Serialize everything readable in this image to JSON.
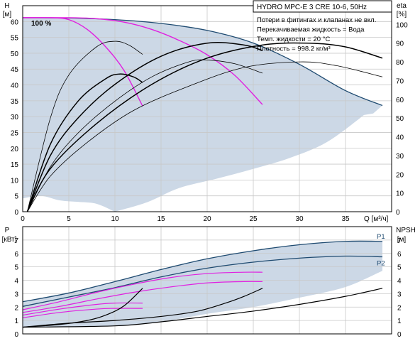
{
  "title": "HYDRO MPC-E 3 CRE 10-6, 50Hz",
  "info_lines": [
    "Потери в фитингах и клапанах не вкл.",
    "Перекачиваемая жидкость = Вода",
    "Темп. жидкости = 20 °C",
    "Плотность = 998.2 кг/м³"
  ],
  "colors": {
    "envelope_fill": "#ccd8e6",
    "envelope_edge": "#1e4a70",
    "speed_curves": "#e020e0",
    "efficiency_curves": "#000000",
    "grid": "#c8c8c8"
  },
  "chart_data": [
    {
      "type": "line",
      "name": "head-efficiency",
      "title": "HYDRO MPC-E 3 CRE 10-6, 50Hz",
      "xlabel": "Q [м³/ч]",
      "ylabel": "H [м]",
      "y2label": "eta [%]",
      "xlim": [
        0,
        40
      ],
      "ylim": [
        0,
        65
      ],
      "y2lim": [
        0,
        110
      ],
      "xticks": [
        0,
        5,
        10,
        15,
        20,
        25,
        30,
        35
      ],
      "yticks": [
        0,
        5,
        10,
        15,
        20,
        25,
        30,
        35,
        40,
        45,
        50,
        55,
        60
      ],
      "y2ticks": [
        0,
        10,
        20,
        30,
        40,
        50,
        60,
        70,
        80,
        90,
        100
      ],
      "annotation": "100 %",
      "envelope": {
        "upper": [
          [
            0,
            61.2
          ],
          [
            5,
            61.1
          ],
          [
            10,
            60.6
          ],
          [
            15,
            59.4
          ],
          [
            20,
            57.2
          ],
          [
            25,
            53.2
          ],
          [
            30,
            46.5
          ],
          [
            35,
            38.2
          ],
          [
            39,
            33.5
          ]
        ],
        "right": [
          [
            39,
            33.5
          ],
          [
            38,
            31
          ],
          [
            37,
            30.5
          ]
        ],
        "lower": [
          [
            0,
            4.2
          ],
          [
            2,
            5
          ],
          [
            4,
            3.6
          ],
          [
            6,
            3.1
          ],
          [
            8,
            2.5
          ],
          [
            10,
            0
          ]
        ],
        "lower_right": [
          [
            10,
            0
          ],
          [
            13.5,
            3
          ],
          [
            17,
            7.5
          ],
          [
            21,
            10.4
          ],
          [
            25,
            13.5
          ],
          [
            29,
            17
          ],
          [
            33,
            22
          ],
          [
            37,
            30.5
          ]
        ]
      },
      "series": [
        {
          "role": "head",
          "points": [
            [
              0,
              61.2
            ],
            [
              3,
              61.2
            ],
            [
              5,
              60.6
            ],
            [
              7,
              57.5
            ],
            [
              9,
              52
            ],
            [
              11,
              44.5
            ],
            [
              13,
              33.3
            ]
          ]
        },
        {
          "role": "head",
          "points": [
            [
              0,
              61.2
            ],
            [
              5,
              61.2
            ],
            [
              8,
              60.9
            ],
            [
              11,
              59.8
            ],
            [
              14,
              57.5
            ],
            [
              17,
              54
            ],
            [
              20,
              49.5
            ],
            [
              23,
              43
            ],
            [
              26,
              33.8
            ]
          ]
        },
        {
          "role": "efficiency_1pump",
          "points": [
            [
              0.5,
              0
            ],
            [
              3,
              50
            ],
            [
              5,
              73
            ],
            [
              8,
              88
            ],
            [
              10,
              91
            ],
            [
              11.5,
              89
            ],
            [
              13,
              84
            ]
          ]
        },
        {
          "role": "efficiency_1pump",
          "points": [
            [
              0.5,
              0
            ],
            [
              3,
              36
            ],
            [
              6,
              59
            ],
            [
              9,
              71
            ],
            [
              10.5,
              73.5
            ],
            [
              12,
              72
            ],
            [
              13,
              69
            ]
          ]
        },
        {
          "role": "efficiency_2pumps",
          "points": [
            [
              0.5,
              0
            ],
            [
              3,
              24
            ],
            [
              6,
              42
            ],
            [
              10,
              59
            ],
            [
              14,
              72
            ],
            [
              18,
              80
            ],
            [
              20,
              81
            ],
            [
              23,
              79
            ],
            [
              26,
              74
            ]
          ]
        },
        {
          "role": "efficiency_2pumps",
          "points": [
            [
              0.5,
              0
            ],
            [
              3,
              30
            ],
            [
              6,
              50
            ],
            [
              10,
              68
            ],
            [
              15,
              83
            ],
            [
              20,
              90
            ],
            [
              24,
              89
            ],
            [
              26,
              86
            ]
          ]
        },
        {
          "role": "efficiency_3pumps",
          "points": [
            [
              0.5,
              0
            ],
            [
              3,
              19
            ],
            [
              7,
              37
            ],
            [
              12,
              54
            ],
            [
              18,
              67
            ],
            [
              24,
              77
            ],
            [
              30,
              80
            ],
            [
              34,
              78
            ],
            [
              39,
              72
            ]
          ]
        },
        {
          "role": "efficiency_3pumps",
          "points": [
            [
              0.5,
              0
            ],
            [
              3,
              23
            ],
            [
              8,
              47
            ],
            [
              14,
              68
            ],
            [
              20,
              82
            ],
            [
              26,
              89
            ],
            [
              31,
              90
            ],
            [
              35,
              88
            ],
            [
              39,
              82
            ]
          ]
        }
      ]
    },
    {
      "type": "line",
      "name": "power-npsh",
      "xlabel": "Q [м³/ч]",
      "ylabel": "P [кВт]",
      "y2label": "NPSH [м]",
      "xlim": [
        0,
        40
      ],
      "ylim": [
        0,
        8
      ],
      "y2lim": [
        0,
        8
      ],
      "yticks": [
        0,
        1,
        2,
        3,
        4,
        5,
        6,
        7
      ],
      "y2ticks": [
        0,
        1,
        2,
        3,
        4,
        5,
        6,
        7
      ],
      "envelope": {
        "upper": [
          [
            0,
            2.4
          ],
          [
            5,
            3.05
          ],
          [
            10,
            3.9
          ],
          [
            15,
            4.8
          ],
          [
            20,
            5.6
          ],
          [
            25,
            6.2
          ],
          [
            30,
            6.65
          ],
          [
            35,
            6.9
          ],
          [
            39,
            6.9
          ]
        ],
        "lower": [
          [
            0,
            0.5
          ],
          [
            10,
            0.6
          ],
          [
            15,
            0.9
          ],
          [
            20,
            1.5
          ],
          [
            25,
            2
          ],
          [
            30,
            2.7
          ],
          [
            35,
            3.5
          ],
          [
            39,
            4.7
          ]
        ]
      },
      "series": [
        {
          "name": "P1",
          "role": "power",
          "points": [
            [
              0,
              2.4
            ],
            [
              5,
              3.05
            ],
            [
              10,
              3.9
            ],
            [
              15,
              4.8
            ],
            [
              20,
              5.6
            ],
            [
              25,
              6.2
            ],
            [
              30,
              6.65
            ],
            [
              35,
              6.9
            ],
            [
              39,
              6.9
            ]
          ]
        },
        {
          "name": "P2",
          "role": "power",
          "points": [
            [
              0,
              2.05
            ],
            [
              5,
              2.75
            ],
            [
              10,
              3.45
            ],
            [
              15,
              4.25
            ],
            [
              20,
              4.9
            ],
            [
              25,
              5.35
            ],
            [
              30,
              5.65
            ],
            [
              35,
              5.8
            ],
            [
              39,
              5.75
            ]
          ]
        },
        {
          "role": "power_speed",
          "points": [
            [
              0,
              1.8
            ],
            [
              4,
              2.4
            ],
            [
              8,
              3.1
            ],
            [
              12,
              3.7
            ],
            [
              16,
              4.2
            ],
            [
              20,
              4.5
            ],
            [
              24,
              4.6
            ],
            [
              26,
              4.6
            ]
          ]
        },
        {
          "role": "power_speed",
          "points": [
            [
              0,
              1.6
            ],
            [
              4,
              2.05
            ],
            [
              8,
              2.6
            ],
            [
              12,
              3.1
            ],
            [
              16,
              3.5
            ],
            [
              20,
              3.8
            ],
            [
              24,
              3.9
            ],
            [
              26,
              3.9
            ]
          ]
        },
        {
          "role": "power_speed",
          "points": [
            [
              0,
              1.4
            ],
            [
              4,
              1.85
            ],
            [
              8,
              2.2
            ],
            [
              10,
              2.3
            ],
            [
              13,
              2.3
            ]
          ]
        },
        {
          "role": "power_speed",
          "points": [
            [
              0,
              1.2
            ],
            [
              4,
              1.6
            ],
            [
              8,
              1.85
            ],
            [
              10,
              1.9
            ],
            [
              13,
              1.9
            ]
          ]
        },
        {
          "role": "npsh",
          "points": [
            [
              0,
              0.5
            ],
            [
              4,
              0.7
            ],
            [
              7,
              1
            ],
            [
              9,
              1.4
            ],
            [
              11,
              2.1
            ],
            [
              13,
              3.4
            ]
          ]
        },
        {
          "role": "npsh",
          "points": [
            [
              0,
              0.5
            ],
            [
              5,
              0.8
            ],
            [
              10,
              1
            ],
            [
              15,
              1.3
            ],
            [
              19,
              1.7
            ],
            [
              22,
              2.3
            ],
            [
              24,
              2.8
            ],
            [
              26,
              3.4
            ]
          ]
        },
        {
          "role": "npsh",
          "points": [
            [
              0,
              0.5
            ],
            [
              10,
              0.6
            ],
            [
              15,
              0.9
            ],
            [
              20,
              1.3
            ],
            [
              25,
              1.7
            ],
            [
              30,
              2.2
            ],
            [
              35,
              2.8
            ],
            [
              39,
              3.4
            ]
          ]
        }
      ]
    }
  ]
}
